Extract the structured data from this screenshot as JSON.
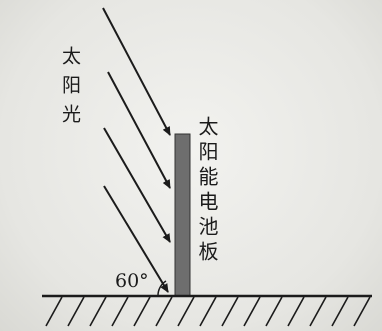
{
  "diagram": {
    "sun_label": "太阳光",
    "panel_label": "太阳能电池板",
    "angle_label": "60°",
    "colors": {
      "ink": "#1b1b1b",
      "panel_fill": "#6e6e6e",
      "background": "#e9e9e6"
    }
  }
}
